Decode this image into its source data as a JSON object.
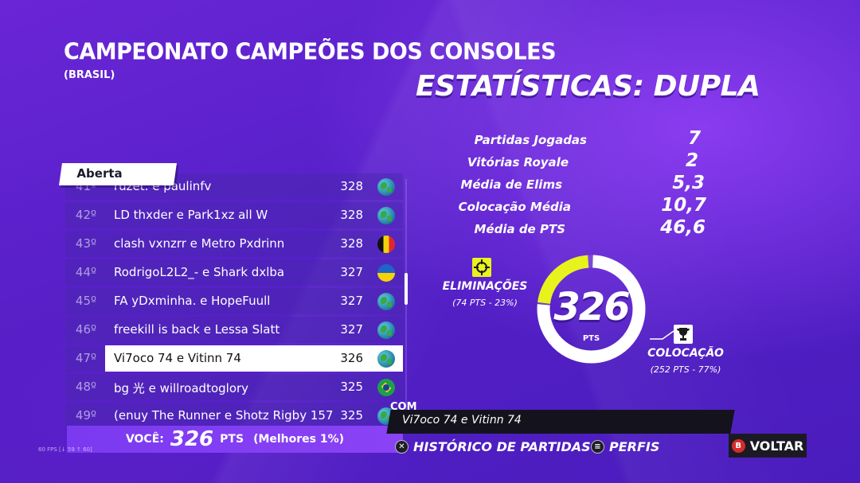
{
  "header": {
    "title": "CAMPEONATO CAMPEÕES DOS CONSOLES",
    "region": "(BRASIL)",
    "stats_title": "ESTATÍSTICAS: DUPLA"
  },
  "tab": {
    "label": "Aberta"
  },
  "leaderboard": [
    {
      "rank": "41º",
      "name": "ruzet. e paulinfv",
      "pts": "328",
      "flag": "globe"
    },
    {
      "rank": "42º",
      "name": "LD thxder e Park1xz all W",
      "pts": "328",
      "flag": "globe"
    },
    {
      "rank": "43º",
      "name": "clash vxnzrr e Metro Pxdrinn",
      "pts": "328",
      "flag": "belgium"
    },
    {
      "rank": "44º",
      "name": "RodrigoL2L2_- e Shark dxlba",
      "pts": "327",
      "flag": "ukraine"
    },
    {
      "rank": "45º",
      "name": "FA yDxminha. e HopeFuull",
      "pts": "327",
      "flag": "globe"
    },
    {
      "rank": "46º",
      "name": "freekill is back e Lessa Slatt",
      "pts": "327",
      "flag": "globe"
    },
    {
      "rank": "47º",
      "name": "Vi7oco 74 e Vitinn 74",
      "pts": "326",
      "flag": "globe"
    },
    {
      "rank": "48º",
      "name": "bg 光 e willroadtoglory",
      "pts": "325",
      "flag": "brazil"
    },
    {
      "rank": "49º",
      "name": "(enuy The Runner e Shotz Rigby 157",
      "pts": "325",
      "flag": "globe"
    }
  ],
  "selected_index": 6,
  "you": {
    "label": "VOCÊ:",
    "points": "326",
    "unit": "PTS",
    "best": "(Melhores 1%)"
  },
  "fps_text": "60 FPS [↓ 59 ↑ 60]",
  "stats": [
    {
      "label": "Partidas Jogadas",
      "value": "7"
    },
    {
      "label": "Vitórias Royale",
      "value": "2"
    },
    {
      "label": "Média de Elims",
      "value": "5,3"
    },
    {
      "label": "Colocação Média",
      "value": "10,7"
    },
    {
      "label": "Média de PTS",
      "value": "46,6"
    }
  ],
  "donut": {
    "total": "326",
    "unit": "PTS",
    "elim_fraction": 0.23,
    "placement_fraction": 0.77,
    "elim_color": "#e8f21d",
    "placement_color": "#ffffff"
  },
  "elims": {
    "label": "ELIMINAÇÕES",
    "detail": "(74 PTS - 23%)"
  },
  "placement": {
    "label": "COLOCAÇÃO",
    "detail": "(252 PTS - 77%)"
  },
  "teammates": {
    "label": "COM",
    "names": "Vi7oco 74 e Vitinn 74"
  },
  "actions": {
    "history": "HISTÓRICO DE PARTIDAS",
    "profiles": "PERFIS",
    "back": "VOLTAR"
  },
  "colors": {
    "accent": "#7b3af0",
    "background": "#5a22cc"
  }
}
